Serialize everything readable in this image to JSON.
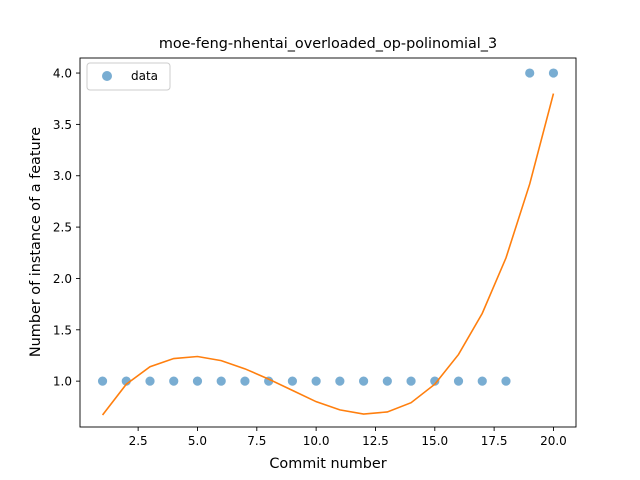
{
  "chart_data": {
    "type": "scatter",
    "title": "moe-feng-nhentai_overloaded_op-polinomial_3",
    "xlabel": "Commit number",
    "ylabel": "Number of instance of a feature",
    "xlim": [
      0.05,
      20.95
    ],
    "ylim": [
      0.5535,
      4.1465
    ],
    "xticks": [
      2.5,
      5.0,
      7.5,
      10.0,
      12.5,
      15.0,
      17.5,
      20.0
    ],
    "xtick_labels": [
      "2.5",
      "5.0",
      "7.5",
      "10.0",
      "12.5",
      "15.0",
      "17.5",
      "20.0"
    ],
    "yticks": [
      1.0,
      1.5,
      2.0,
      2.5,
      3.0,
      3.5,
      4.0
    ],
    "ytick_labels": [
      "1.0",
      "1.5",
      "2.0",
      "2.5",
      "3.0",
      "3.5",
      "4.0"
    ],
    "grid": false,
    "legend": {
      "position": "top-left",
      "entries": [
        "data"
      ]
    },
    "series": [
      {
        "name": "data",
        "kind": "scatter",
        "color": "#1f77b4",
        "x": [
          1,
          2,
          3,
          4,
          5,
          6,
          7,
          8,
          9,
          10,
          11,
          12,
          13,
          14,
          15,
          16,
          17,
          18,
          19,
          20
        ],
        "y": [
          1,
          1,
          1,
          1,
          1,
          1,
          1,
          1,
          1,
          1,
          1,
          1,
          1,
          1,
          1,
          1,
          1,
          1,
          4,
          4
        ]
      },
      {
        "kind": "line",
        "color": "#ff7f0e",
        "x": [
          1,
          2,
          3,
          4,
          5,
          6,
          7,
          8,
          9,
          10,
          11,
          12,
          13,
          14,
          15,
          16,
          17,
          18,
          19,
          20
        ],
        "y": [
          0.67,
          0.97,
          1.14,
          1.22,
          1.24,
          1.2,
          1.12,
          1.02,
          0.91,
          0.8,
          0.72,
          0.68,
          0.7,
          0.79,
          0.97,
          1.26,
          1.66,
          2.2,
          2.92,
          3.8
        ]
      }
    ]
  }
}
